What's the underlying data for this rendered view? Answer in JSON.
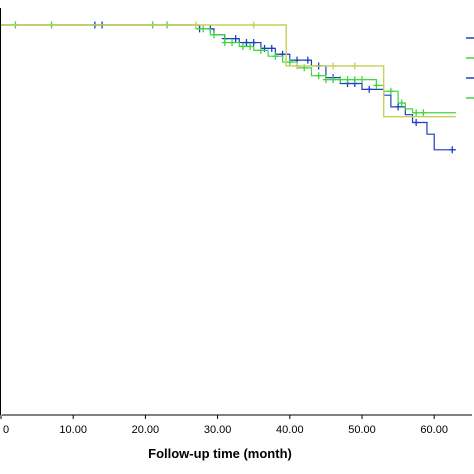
{
  "chart_data": {
    "type": "line",
    "subtype": "kaplan-meier-survival",
    "xlabel": "Follow-up time (month)",
    "ylabel": "",
    "xlim": [
      0,
      63
    ],
    "ylim": [
      0,
      1
    ],
    "xticks": [
      "0",
      "10.00",
      "20.00",
      "30.00",
      "40.00",
      "50.00",
      "60.00"
    ],
    "xtick_values": [
      0,
      10,
      20,
      30,
      40,
      50,
      60
    ],
    "grid": false,
    "legend": "right (partially visible)",
    "colors": {
      "axis": "#000000"
    },
    "series": [
      {
        "color": "#1f3fbf",
        "steps": [
          [
            0,
            1.0
          ],
          [
            27.5,
            0.99
          ],
          [
            29.5,
            0.975
          ],
          [
            31,
            0.965
          ],
          [
            33,
            0.955
          ],
          [
            36,
            0.94
          ],
          [
            38,
            0.925
          ],
          [
            40,
            0.91
          ],
          [
            43,
            0.895
          ],
          [
            45,
            0.865
          ],
          [
            47,
            0.85
          ],
          [
            50,
            0.835
          ],
          [
            53,
            0.82
          ],
          [
            54,
            0.79
          ],
          [
            56,
            0.77
          ],
          [
            57,
            0.75
          ],
          [
            59,
            0.72
          ],
          [
            60,
            0.68
          ],
          [
            63,
            0.68
          ]
        ],
        "censor_x": [
          13,
          14,
          27.5,
          29,
          31,
          32.5,
          34,
          35,
          36.5,
          37.5,
          39,
          41,
          42.5,
          44,
          46,
          48,
          49,
          51,
          55,
          57.5,
          62.5
        ]
      },
      {
        "color": "#3fd63f",
        "steps": [
          [
            0,
            1.0
          ],
          [
            27,
            0.99
          ],
          [
            29,
            0.975
          ],
          [
            31,
            0.955
          ],
          [
            33,
            0.945
          ],
          [
            35,
            0.935
          ],
          [
            37,
            0.92
          ],
          [
            39,
            0.905
          ],
          [
            41,
            0.89
          ],
          [
            43,
            0.87
          ],
          [
            45,
            0.86
          ],
          [
            52,
            0.845
          ],
          [
            53,
            0.83
          ],
          [
            55,
            0.8
          ],
          [
            56,
            0.785
          ],
          [
            57,
            0.775
          ],
          [
            63,
            0.775
          ]
        ],
        "censor_x": [
          2,
          7,
          21,
          23,
          28,
          29.5,
          31,
          32,
          33.5,
          34.5,
          36,
          38,
          40,
          42,
          44,
          45,
          46,
          47,
          48,
          49,
          50,
          52,
          54,
          55.5,
          57.5,
          58.5
        ]
      },
      {
        "color": "#c8cf5a",
        "steps": [
          [
            0,
            1.0
          ],
          [
            39.5,
            1.0
          ],
          [
            39.5,
            0.895
          ],
          [
            53,
            0.895
          ],
          [
            53,
            0.765
          ],
          [
            63,
            0.765
          ]
        ],
        "censor_x": [
          27,
          35,
          41,
          46,
          49
        ]
      }
    ]
  }
}
